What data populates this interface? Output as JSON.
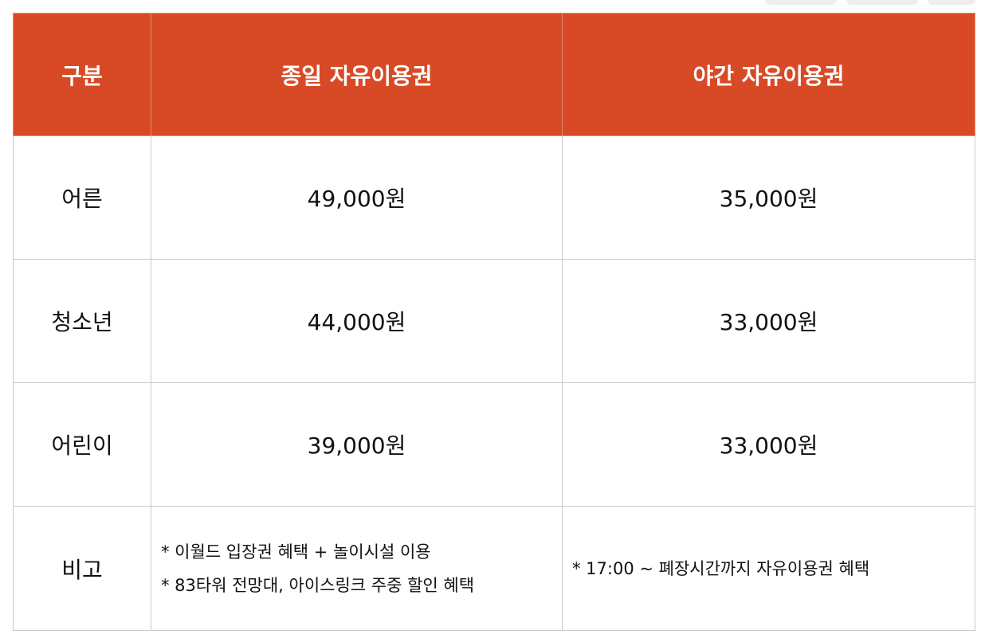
{
  "table": {
    "headers": [
      "구분",
      "종일 자유이용권",
      "야간 자유이용권"
    ],
    "rows": [
      {
        "label": "어른",
        "day": "49,000원",
        "night": "35,000원"
      },
      {
        "label": "청소년",
        "day": "44,000원",
        "night": "33,000원"
      },
      {
        "label": "어린이",
        "day": "39,000원",
        "night": "33,000원"
      }
    ],
    "notes": {
      "label": "비고",
      "day_lines": [
        "* 이월드 입장권 혜택 + 놀이시설 이용",
        "* 83타워 전망대, 아이스링크 주중 할인 혜택"
      ],
      "night_lines": [
        "* 17:00 ~ 폐장시간까지 자유이용권 혜택"
      ]
    }
  },
  "colors": {
    "header_bg": "#d84a25",
    "header_text": "#ffffff",
    "border": "#c9c9c9",
    "body_text": "#111111"
  }
}
